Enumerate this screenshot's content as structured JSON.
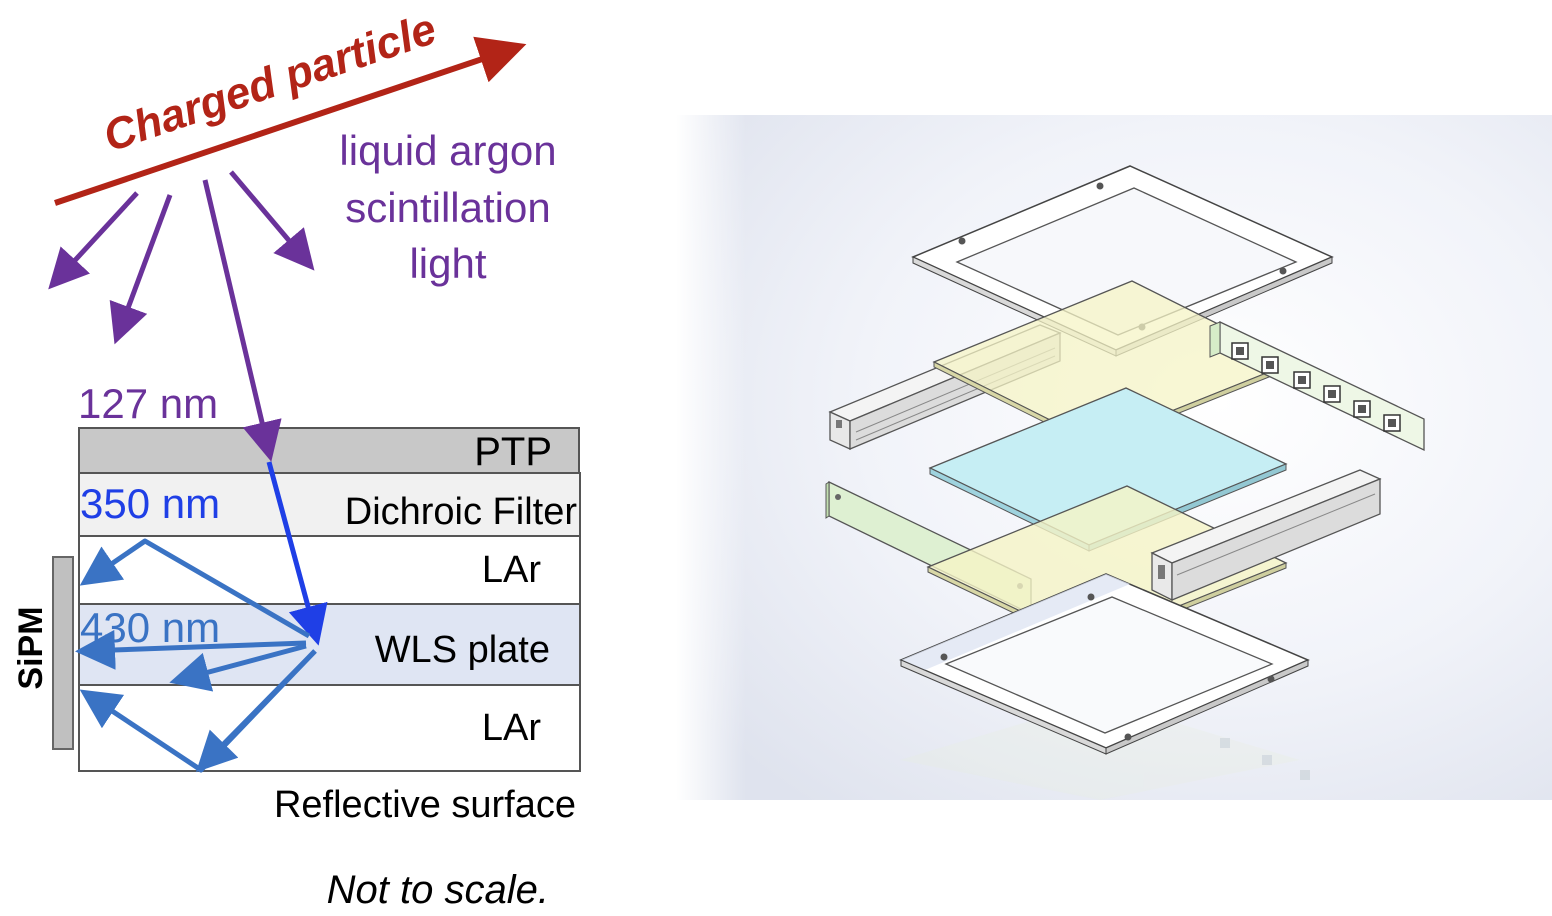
{
  "left_diagram": {
    "particle_label": "Charged particle",
    "scint_lines": [
      "liquid argon",
      "scintillation",
      "light"
    ],
    "wavelength_uv": "127 nm",
    "wavelength_ptp": "350 nm",
    "wavelength_wls": "430 nm",
    "layers": {
      "ptp": "PTP",
      "dichroic": "Dichroic Filter",
      "lar_top": "LAr",
      "wls": "WLS plate",
      "lar_bottom": "LAr"
    },
    "sensor": "SiPM",
    "reflective": "Reflective surface",
    "note": "Not to scale."
  },
  "colors": {
    "particle": "#b22417",
    "scintillation": "#6a329a",
    "ptp_light": "#1f3fe6",
    "wls_light": "#3a73c4",
    "ptp_fill": "#c8c8c8",
    "dichroic_fill": "#f1f1f1",
    "wls_fill": "#dfe5f3",
    "sipm_fill": "#c0c0c0"
  }
}
